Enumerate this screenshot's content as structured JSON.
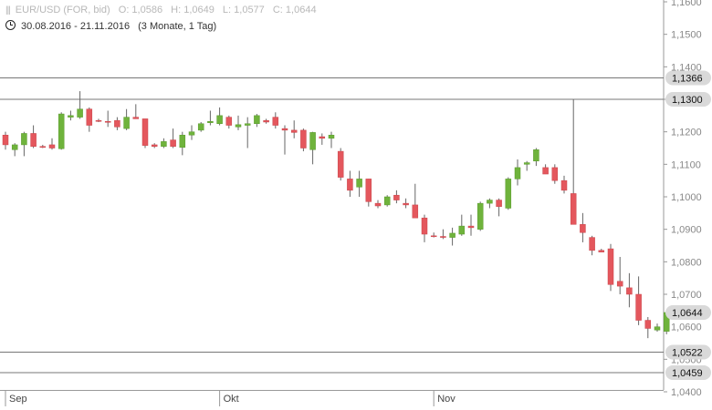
{
  "header": {
    "instrument": "EUR/USD (FOR, bid)",
    "open": "O: 1,0586",
    "high": "H: 1,0649",
    "low": "L: 1,0577",
    "close": "C: 1,0644",
    "range": "30.08.2016 - 21.11.2016",
    "period": "(3 Monate, 1 Tag)"
  },
  "colors": {
    "up": "#6fb33c",
    "down": "#e4575d",
    "wick": "#666666",
    "level_line": "#777777",
    "tag_bg": "#d9d9d9"
  },
  "chart_data": {
    "type": "candlestick",
    "title": "EUR/USD (FOR, bid)",
    "ylim": [
      1.04,
      1.16
    ],
    "y_ticks": [
      "1,1600",
      "1,1500",
      "1,1400",
      "1,1300",
      "1,1200",
      "1,1100",
      "1,1000",
      "1,0900",
      "1,0800",
      "1,0700",
      "1,0600",
      "1,0500",
      "1,0400"
    ],
    "x_labels": [
      {
        "label": "Sep",
        "index": 0
      },
      {
        "label": "Okt",
        "index": 23
      },
      {
        "label": "Nov",
        "index": 46
      }
    ],
    "level_lines": [
      {
        "value": 1.1366,
        "label": "1,1366"
      },
      {
        "value": 1.13,
        "label": "1,1300"
      },
      {
        "value": 1.0522,
        "label": "1,0522"
      },
      {
        "value": 1.0459,
        "label": "1,0459"
      }
    ],
    "last_price": {
      "value": 1.0644,
      "label": "1,0644"
    },
    "candles": [
      [
        1.119,
        1.12,
        1.1145,
        1.116
      ],
      [
        1.1145,
        1.1165,
        1.1125,
        1.116
      ],
      [
        1.116,
        1.12,
        1.1125,
        1.1195
      ],
      [
        1.1195,
        1.122,
        1.115,
        1.1155
      ],
      [
        1.1155,
        1.116,
        1.115,
        1.1152
      ],
      [
        1.116,
        1.118,
        1.1145,
        1.115
      ],
      [
        1.1148,
        1.126,
        1.1145,
        1.1255
      ],
      [
        1.1245,
        1.1265,
        1.1235,
        1.125
      ],
      [
        1.1245,
        1.1325,
        1.124,
        1.127
      ],
      [
        1.127,
        1.1275,
        1.12,
        1.122
      ],
      [
        1.1235,
        1.124,
        1.123,
        1.1232
      ],
      [
        1.1232,
        1.1265,
        1.1215,
        1.123
      ],
      [
        1.1235,
        1.1245,
        1.1205,
        1.1215
      ],
      [
        1.121,
        1.127,
        1.1205,
        1.1245
      ],
      [
        1.1245,
        1.1285,
        1.124,
        1.124
      ],
      [
        1.124,
        1.124,
        1.115,
        1.1158
      ],
      [
        1.116,
        1.1165,
        1.115,
        1.1155
      ],
      [
        1.1155,
        1.118,
        1.115,
        1.117
      ],
      [
        1.1175,
        1.121,
        1.115,
        1.1155
      ],
      [
        1.1152,
        1.12,
        1.1128,
        1.119
      ],
      [
        1.119,
        1.122,
        1.1175,
        1.12
      ],
      [
        1.1205,
        1.123,
        1.12,
        1.1225
      ],
      [
        1.1228,
        1.1265,
        1.122,
        1.1232
      ],
      [
        1.1225,
        1.1275,
        1.122,
        1.125
      ],
      [
        1.1245,
        1.125,
        1.121,
        1.122
      ],
      [
        1.1215,
        1.125,
        1.1205,
        1.1222
      ],
      [
        1.122,
        1.1245,
        1.115,
        1.1225
      ],
      [
        1.1225,
        1.1255,
        1.1215,
        1.125
      ],
      [
        1.1235,
        1.124,
        1.1225,
        1.123
      ],
      [
        1.1245,
        1.126,
        1.121,
        1.122
      ],
      [
        1.121,
        1.122,
        1.113,
        1.1205
      ],
      [
        1.1205,
        1.1235,
        1.118,
        1.1198
      ],
      [
        1.1205,
        1.121,
        1.114,
        1.115
      ],
      [
        1.1145,
        1.12,
        1.11,
        1.1198
      ],
      [
        1.1185,
        1.1195,
        1.116,
        1.118
      ],
      [
        1.118,
        1.12,
        1.115,
        1.119
      ],
      [
        1.114,
        1.115,
        1.105,
        1.106
      ],
      [
        1.1055,
        1.108,
        1.1,
        1.102
      ],
      [
        1.103,
        1.108,
        1.1,
        1.1055
      ],
      [
        1.1055,
        1.1055,
        1.097,
        1.0985
      ],
      [
        1.098,
        1.099,
        1.0965,
        1.0972
      ],
      [
        1.0975,
        1.1005,
        1.097,
        1.1
      ],
      [
        1.1005,
        1.102,
        1.098,
        1.099
      ],
      [
        1.098,
        1.0995,
        1.0965,
        1.0975
      ],
      [
        1.0975,
        1.104,
        1.094,
        1.0935
      ],
      [
        1.0935,
        1.0945,
        1.086,
        1.0885
      ],
      [
        1.088,
        1.089,
        1.0875,
        1.0878
      ],
      [
        1.0878,
        1.09,
        1.087,
        1.0875
      ],
      [
        1.0875,
        1.0905,
        1.085,
        1.0888
      ],
      [
        1.0885,
        1.0945,
        1.088,
        1.091
      ],
      [
        1.091,
        1.0945,
        1.088,
        1.0905
      ],
      [
        1.09,
        1.0985,
        1.0895,
        1.098
      ],
      [
        1.098,
        1.0995,
        1.0965,
        1.099
      ],
      [
        1.099,
        1.0995,
        1.094,
        1.097
      ],
      [
        1.0965,
        1.106,
        1.096,
        1.1055
      ],
      [
        1.1055,
        1.1115,
        1.1035,
        1.109
      ],
      [
        1.11,
        1.111,
        1.108,
        1.1105
      ],
      [
        1.111,
        1.115,
        1.1095,
        1.1145
      ],
      [
        1.109,
        1.11,
        1.107,
        1.107
      ],
      [
        1.109,
        1.11,
        1.104,
        1.105
      ],
      [
        1.105,
        1.1065,
        1.101,
        1.102
      ],
      [
        1.101,
        1.13,
        1.092,
        1.0915
      ],
      [
        1.0915,
        1.095,
        1.086,
        1.089
      ],
      [
        1.0875,
        1.088,
        1.082,
        1.0835
      ],
      [
        1.0835,
        1.084,
        1.083,
        1.083
      ],
      [
        1.084,
        1.0855,
        1.071,
        1.073
      ],
      [
        1.074,
        1.0815,
        1.07,
        1.0725
      ],
      [
        1.072,
        1.0765,
        1.066,
        1.07
      ],
      [
        1.07,
        1.0755,
        1.0605,
        1.062
      ],
      [
        1.062,
        1.063,
        1.0565,
        1.0595
      ],
      [
        1.059,
        1.061,
        1.0585,
        1.06
      ],
      [
        1.0586,
        1.0649,
        1.0577,
        1.0644
      ]
    ]
  }
}
